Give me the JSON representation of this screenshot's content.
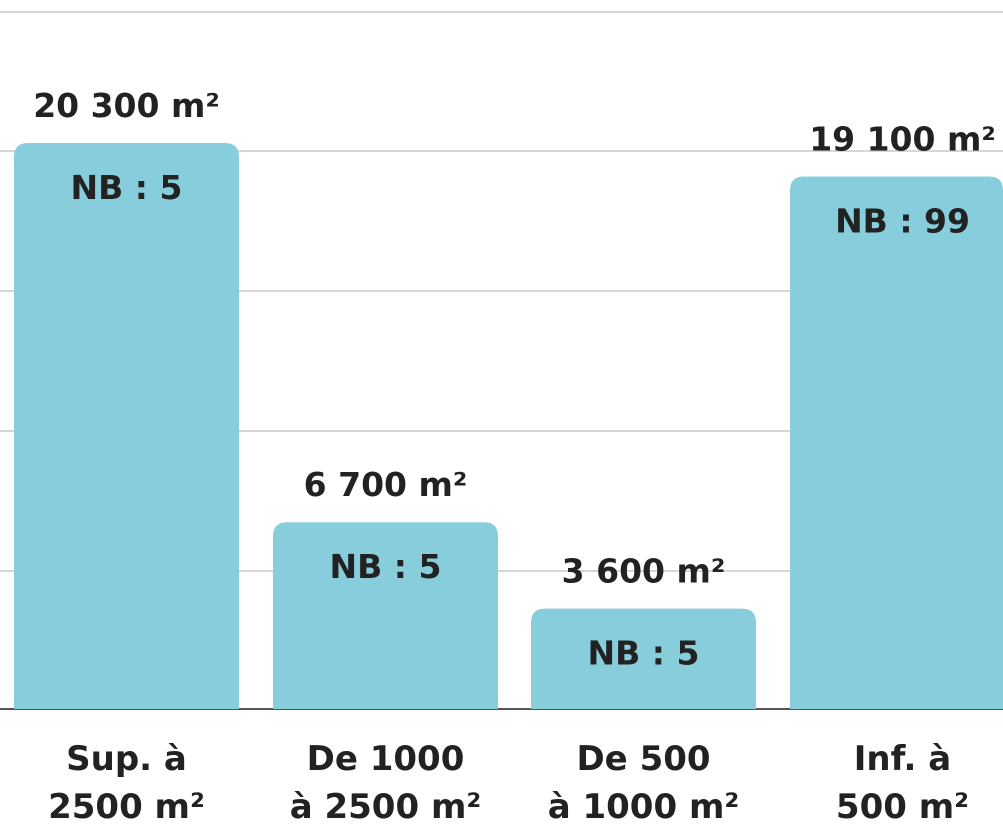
{
  "chart_data": {
    "type": "bar",
    "title": "",
    "xlabel": "",
    "ylabel": "",
    "ylim": [
      0,
      20300
    ],
    "grid": true,
    "categories": [
      [
        "Sup. à",
        "2500 m²"
      ],
      [
        "De 1000",
        "à 2500 m²"
      ],
      [
        "De 500",
        "à 1000 m²"
      ],
      [
        "Inf. à",
        "500 m²"
      ]
    ],
    "values": [
      20300,
      6700,
      3600,
      19100
    ],
    "value_labels": [
      "20 300 m²",
      "6 700 m²",
      "3 600 m²",
      "19 100 m²"
    ],
    "count_labels": [
      "NB : 5",
      "NB : 5",
      "NB : 5",
      "NB : 99"
    ],
    "colors": {
      "bar": "#88cddc",
      "grid": "#c8c8c8",
      "text": "#222222"
    }
  }
}
